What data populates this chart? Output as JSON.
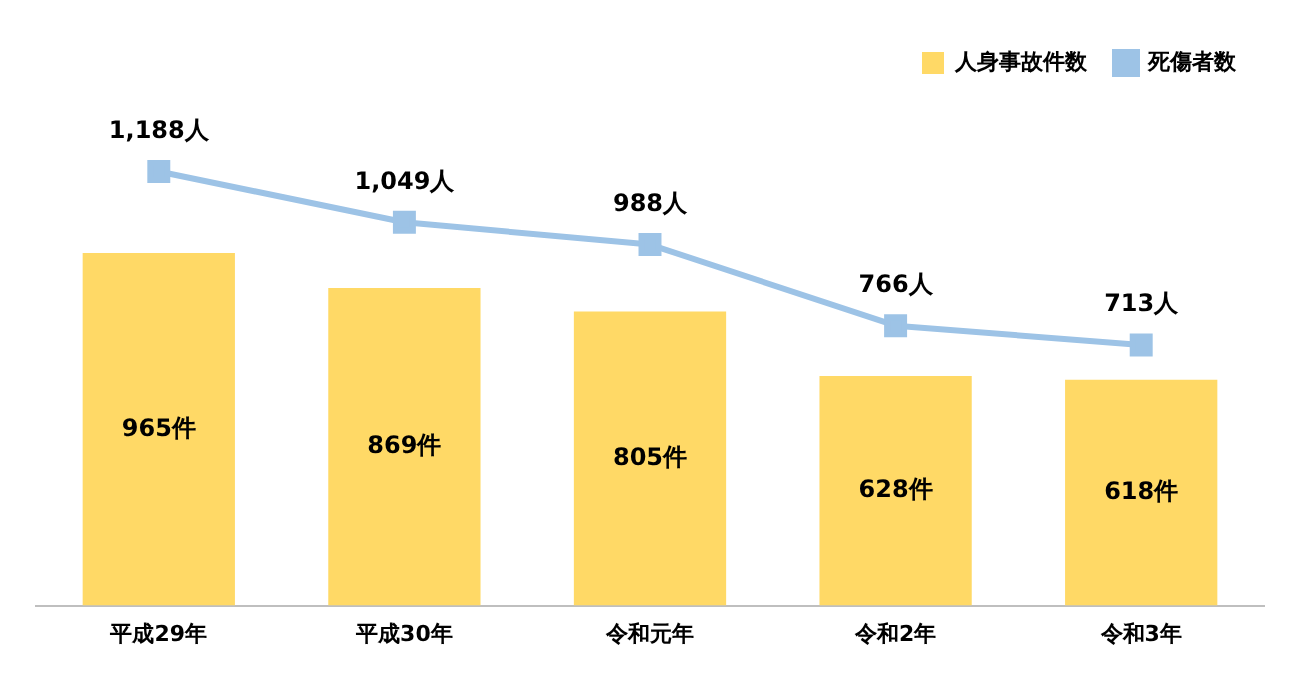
{
  "chart_data": {
    "type": "bar",
    "categories": [
      "平成29年",
      "平成30年",
      "令和元年",
      "令和2年",
      "令和3年"
    ],
    "series": [
      {
        "name": "人身事故件数",
        "color": "#ffd966",
        "values": [
          965,
          869,
          805,
          628,
          618
        ],
        "value_labels": [
          "965件",
          "869件",
          "805件",
          "628件",
          "618件"
        ]
      },
      {
        "name": "死傷者数",
        "type": "line",
        "color": "#9dc3e6",
        "marker": "square",
        "values": [
          1188,
          1049,
          988,
          766,
          713
        ],
        "value_labels": [
          "1,188人",
          "1,049人",
          "988人",
          "766人",
          "713人"
        ]
      }
    ],
    "tick_labels": "x",
    "grid": false,
    "legend": "top right"
  }
}
